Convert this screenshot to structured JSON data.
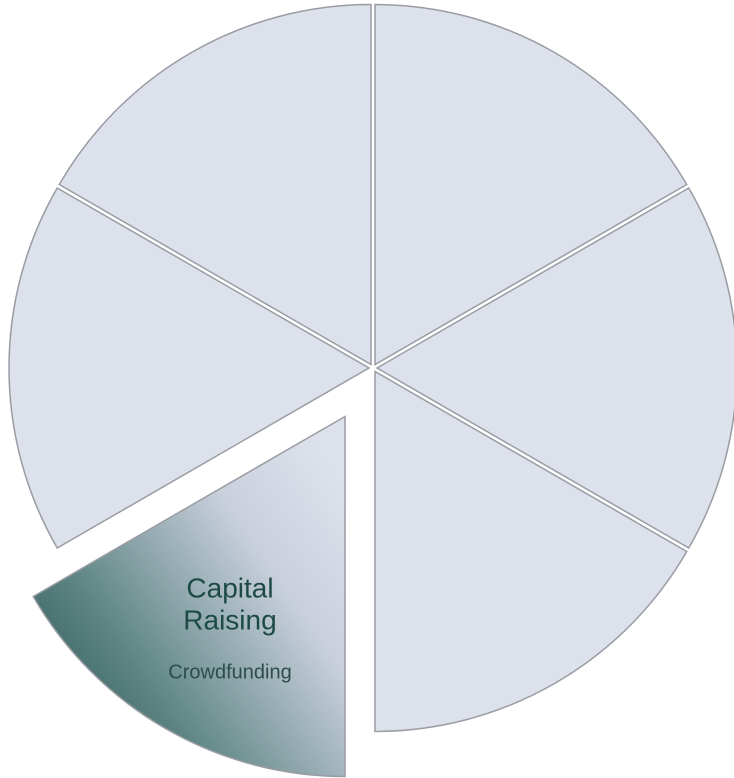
{
  "segments": [
    {
      "title_lines": [
        "Capital",
        "Raising"
      ],
      "subtitle": "Crowdfunding"
    }
  ]
}
